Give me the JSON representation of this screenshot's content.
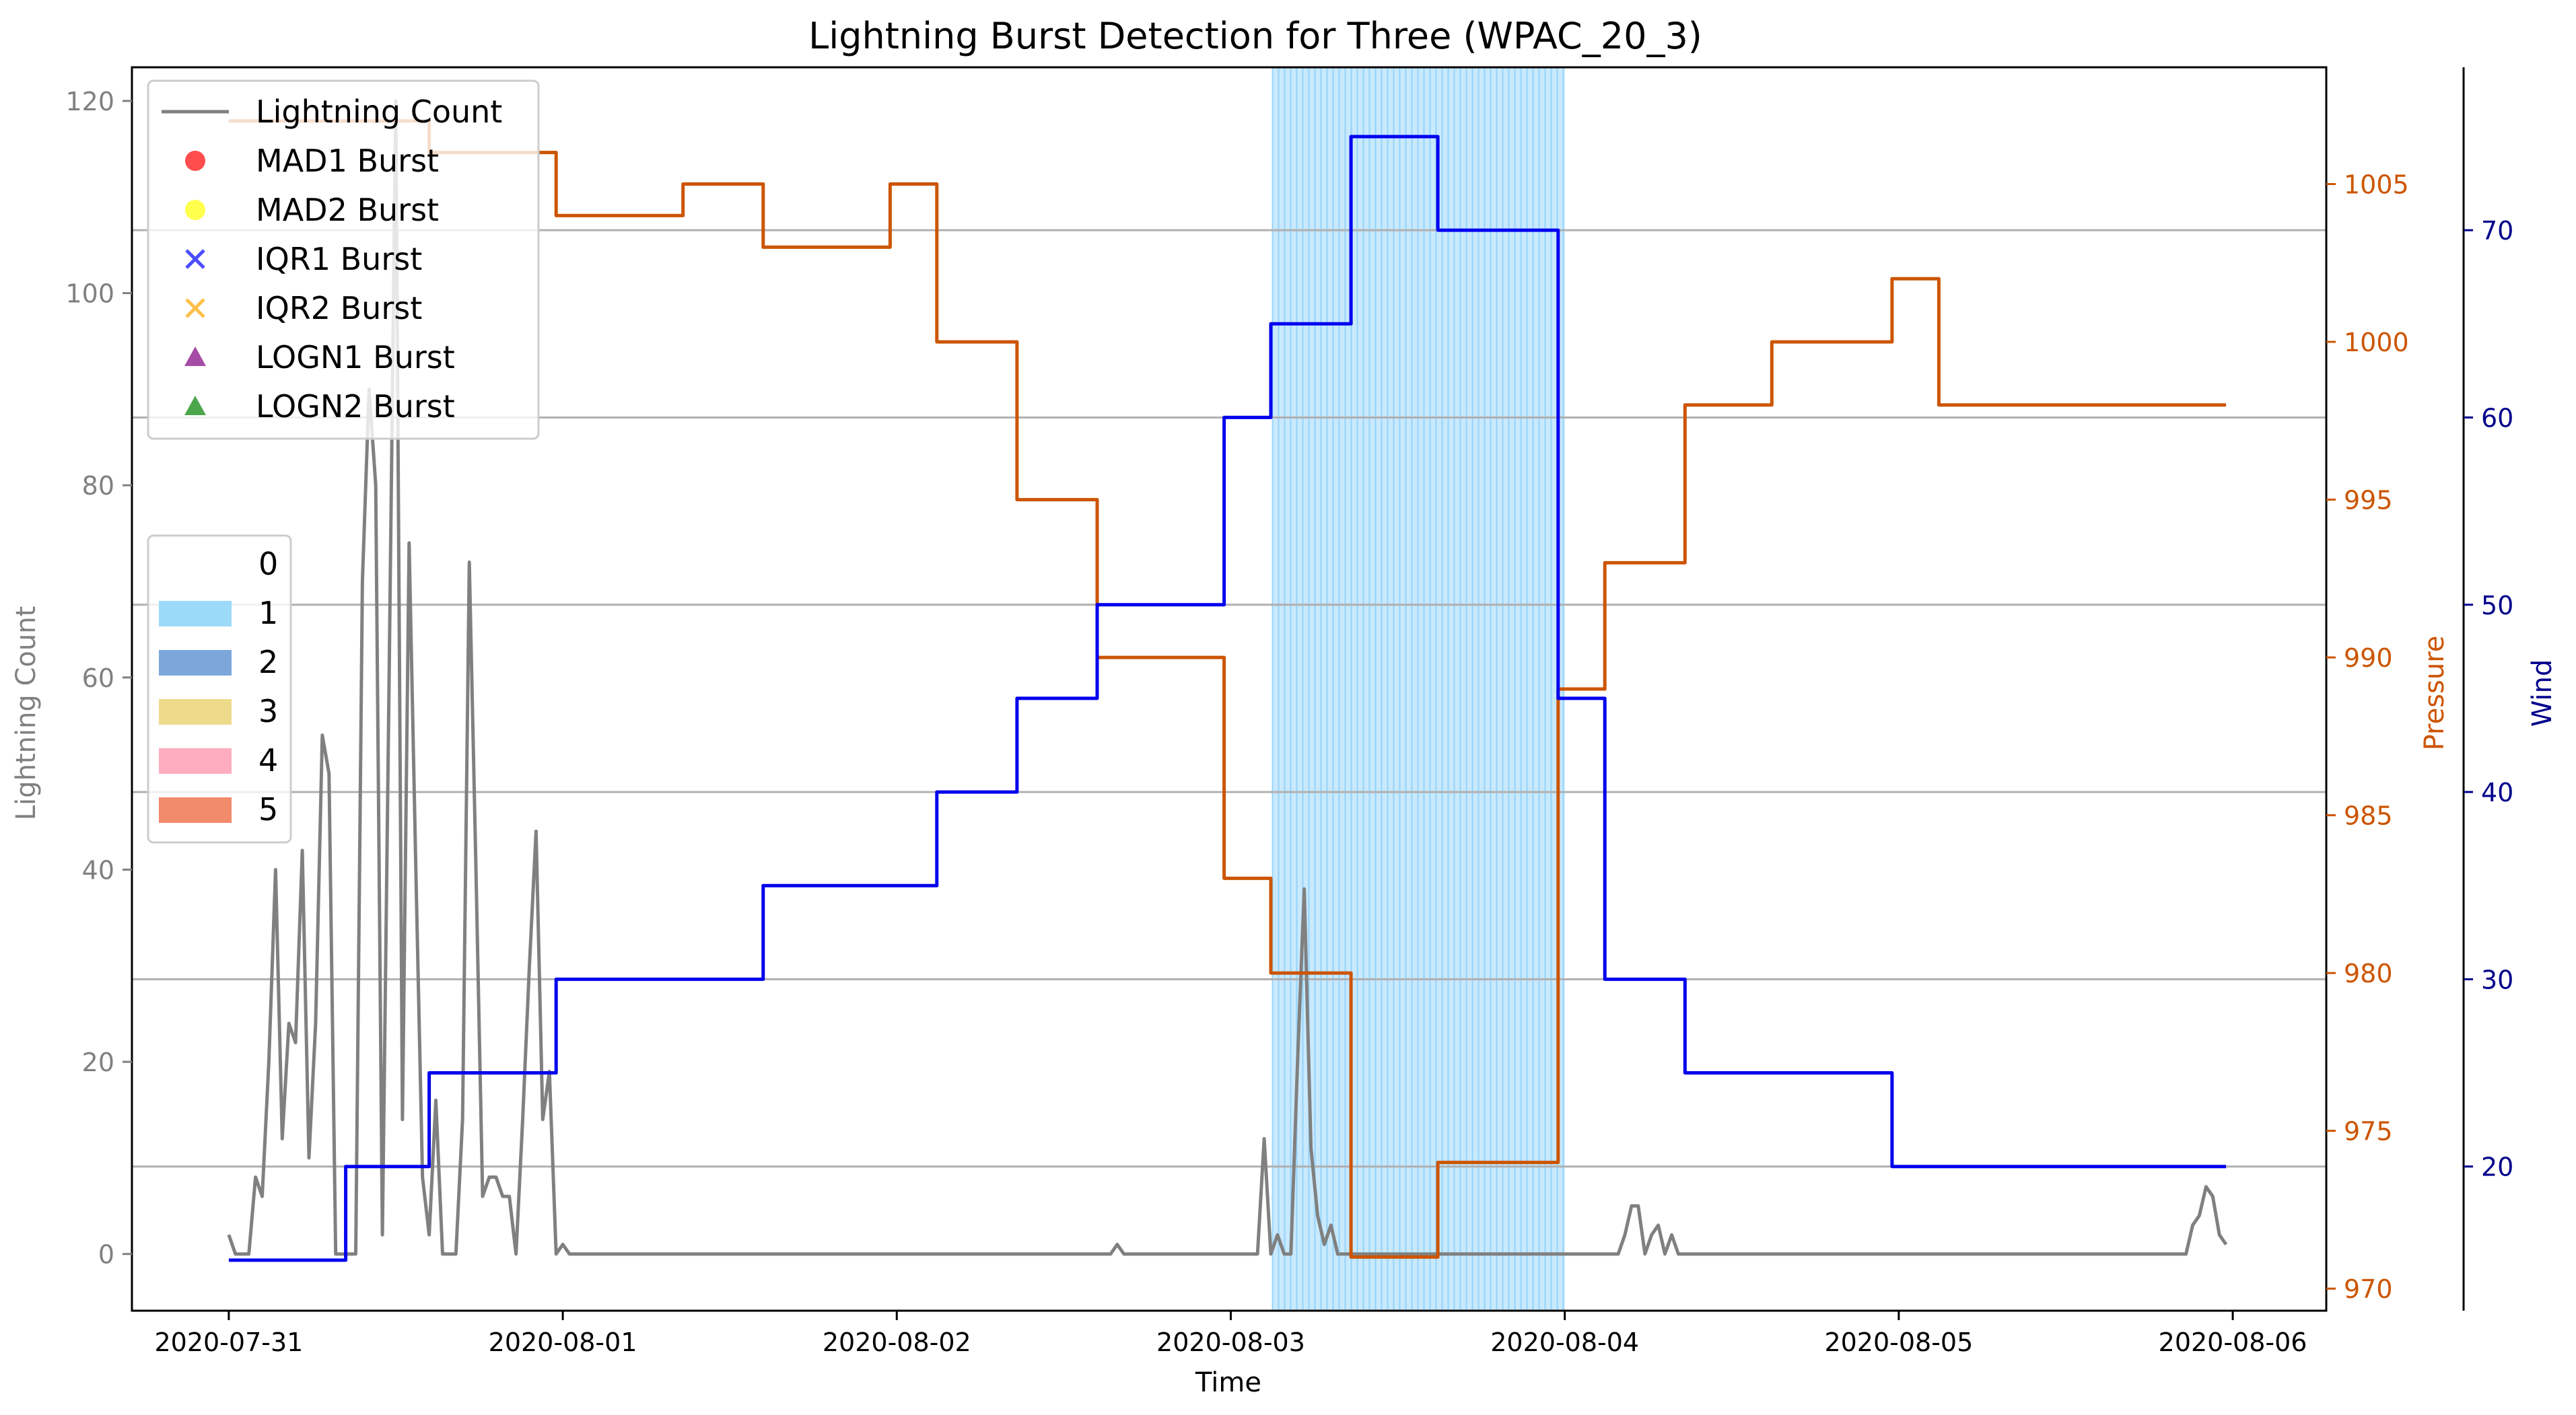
{
  "chart_data": {
    "type": "line",
    "title": "Lightning Burst Detection for Three (WPAC_20_3)",
    "xlabel": "Time",
    "ylabel_left": "Lightning Count",
    "ylabel_pressure": "Pressure",
    "ylabel_wind": "Wind",
    "x_ticks": [
      "2020-07-31",
      "2020-08-01",
      "2020-08-02",
      "2020-08-03",
      "2020-08-04",
      "2020-08-05",
      "2020-08-06"
    ],
    "y_left_ticks": [
      0,
      20,
      40,
      60,
      80,
      100,
      120
    ],
    "y_pressure_ticks": [
      970,
      975,
      980,
      985,
      990,
      995,
      1000,
      1005
    ],
    "y_wind_ticks": [
      20,
      30,
      40,
      50,
      60,
      70
    ],
    "ylim_left": [
      -5.9,
      123.5
    ],
    "ylim_pressure": [
      969.3,
      1008.7
    ],
    "ylim_wind": [
      12.3,
      78.7
    ],
    "xlim_days": [
      -0.29,
      6.28
    ],
    "grid": "horizontal lines at wind ticks",
    "colors": {
      "lightning": "#808080",
      "pressure": "#cc5500",
      "wind": "#0000ee",
      "wind_axis": "#00008b",
      "highlight": "#87cefa",
      "grid": "#b0b0b0"
    },
    "highlight_span": {
      "x_start": "2020-08-03 03:00",
      "x_end": "2020-08-04 00:00",
      "category": "1"
    },
    "legend_series": [
      {
        "label": "Lightning Count",
        "kind": "line",
        "color": "#808080"
      },
      {
        "label": "MAD1 Burst",
        "kind": "circle",
        "color": "#ff0000"
      },
      {
        "label": "MAD2 Burst",
        "kind": "circle",
        "color": "#ffff00"
      },
      {
        "label": "IQR1 Burst",
        "kind": "x",
        "color": "#0000ff"
      },
      {
        "label": "IQR2 Burst",
        "kind": "x",
        "color": "#ffa500"
      },
      {
        "label": "LOGN1 Burst",
        "kind": "triangle",
        "color": "#800080"
      },
      {
        "label": "LOGN2 Burst",
        "kind": "triangle",
        "color": "#008000"
      }
    ],
    "legend_categories": [
      {
        "label": "0",
        "color": "#ffffff"
      },
      {
        "label": "1",
        "color": "#9cdaf9"
      },
      {
        "label": "2",
        "color": "#7ba7db"
      },
      {
        "label": "3",
        "color": "#eddb8b"
      },
      {
        "label": "4",
        "color": "#fdadbe"
      },
      {
        "label": "5",
        "color": "#f28a6c"
      }
    ],
    "series": [
      {
        "name": "Lightning Count",
        "axis": "left",
        "x": [
          0,
          0.02,
          0.04,
          0.06,
          0.08,
          0.1,
          0.12,
          0.14,
          0.16,
          0.18,
          0.2,
          0.22,
          0.24,
          0.26,
          0.28,
          0.3,
          0.32,
          0.34,
          0.36,
          0.38,
          0.4,
          0.42,
          0.44,
          0.46,
          0.48,
          0.5,
          0.52,
          0.54,
          0.56,
          0.58,
          0.6,
          0.62,
          0.64,
          0.66,
          0.68,
          0.7,
          0.72,
          0.74,
          0.76,
          0.78,
          0.8,
          0.82,
          0.84,
          0.86,
          0.88,
          0.9,
          0.92,
          0.94,
          0.96,
          0.98,
          1.0,
          1.02,
          1.04,
          1.06,
          1.08,
          2.64,
          2.66,
          2.68,
          3.08,
          3.1,
          3.12,
          3.14,
          3.16,
          3.18,
          3.2,
          3.22,
          3.24,
          3.26,
          3.28,
          3.3,
          3.32,
          3.34,
          3.36,
          4.16,
          4.18,
          4.2,
          4.22,
          4.24,
          4.26,
          4.28,
          4.3,
          4.32,
          4.34,
          4.36,
          4.38,
          5.84,
          5.86,
          5.88,
          5.9,
          5.92,
          5.94,
          5.96,
          5.98
        ],
        "values": [
          2,
          0,
          0,
          0,
          8,
          6,
          20,
          40,
          12,
          24,
          22,
          42,
          10,
          24,
          54,
          50,
          0,
          0,
          0,
          0,
          70,
          90,
          80,
          2,
          60,
          120,
          14,
          74,
          40,
          8,
          2,
          16,
          0,
          0,
          0,
          14,
          72,
          40,
          6,
          8,
          8,
          6,
          6,
          0,
          14,
          30,
          44,
          14,
          19,
          0,
          1,
          0,
          0,
          0,
          0,
          0,
          1,
          0,
          0,
          12,
          0,
          2,
          0,
          0,
          20,
          38,
          11,
          4,
          1,
          3,
          0,
          0,
          0,
          0,
          2,
          5,
          5,
          0,
          2,
          3,
          0,
          2,
          0,
          0,
          0,
          0,
          0,
          3,
          4,
          7,
          6,
          2,
          1
        ]
      },
      {
        "name": "Pressure",
        "axis": "pressure",
        "x": [
          0,
          0.6,
          0.6,
          0.98,
          0.98,
          1.36,
          1.36,
          1.6,
          1.6,
          1.98,
          1.98,
          2.12,
          2.12,
          2.36,
          2.36,
          2.6,
          2.6,
          2.98,
          2.98,
          3.12,
          3.12,
          3.36,
          3.36,
          3.62,
          3.62,
          3.98,
          3.98,
          4.12,
          4.12,
          4.36,
          4.36,
          4.62,
          4.62,
          4.98,
          4.98,
          5.12,
          5.12,
          5.98
        ],
        "values": [
          1007,
          1007,
          1006,
          1006,
          1004,
          1004,
          1005,
          1005,
          1003,
          1003,
          1005,
          1005,
          1000,
          1000,
          995,
          995,
          990,
          990,
          983,
          983,
          980,
          980,
          971,
          971,
          974,
          974,
          989,
          989,
          993,
          993,
          998,
          998,
          1000,
          1000,
          1002,
          1002,
          998,
          998
        ]
      },
      {
        "name": "Wind",
        "axis": "wind",
        "x": [
          0,
          0.35,
          0.35,
          0.6,
          0.6,
          0.98,
          0.98,
          1.6,
          1.6,
          2.12,
          2.12,
          2.36,
          2.36,
          2.6,
          2.6,
          2.98,
          2.98,
          3.12,
          3.12,
          3.36,
          3.36,
          3.62,
          3.62,
          3.98,
          3.98,
          4.12,
          4.12,
          4.36,
          4.36,
          4.98,
          4.98,
          5.98
        ],
        "values": [
          15,
          15,
          20,
          20,
          25,
          25,
          30,
          30,
          35,
          35,
          40,
          40,
          45,
          45,
          50,
          50,
          60,
          60,
          65,
          65,
          75,
          75,
          70,
          70,
          45,
          45,
          30,
          30,
          25,
          25,
          20,
          20
        ]
      }
    ]
  }
}
